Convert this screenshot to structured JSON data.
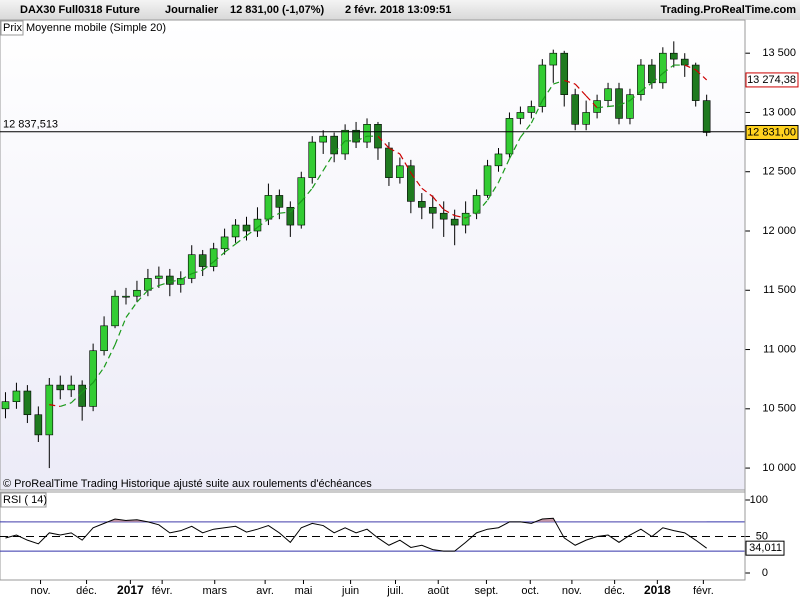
{
  "header": {
    "symbol": "DAX30 Full0318 Future",
    "period": "Journalier",
    "quote": "12 831,00 (-1,07%)",
    "datetime": "2 févr. 2018 13:09:51",
    "site": "Trading.ProRealTime.com"
  },
  "chart_data": [
    {
      "type": "candlestick",
      "legend_box": "Prix",
      "note": "© ProRealTime Trading  Historique ajusté suite aux roulements d'échéances",
      "open": [
        10500,
        10560,
        10650,
        10450,
        10280,
        10700,
        10660,
        10700,
        10520,
        10990,
        11200,
        11450,
        11450,
        11500,
        11600,
        11620,
        11550,
        11600,
        11800,
        11700,
        11850,
        11950,
        12050,
        12000,
        12100,
        12300,
        12200,
        12050,
        12450,
        12750,
        12800,
        12650,
        12850,
        12750,
        12900,
        12700,
        12450,
        12550,
        12250,
        12200,
        12150,
        12100,
        12050,
        12150,
        12300,
        12550,
        12650,
        12950,
        13000,
        13050,
        13400,
        13500,
        13150,
        12900,
        13000,
        13100,
        13200,
        12950,
        13150,
        13400,
        13250,
        13500,
        13450,
        13400,
        13100
      ],
      "high": [
        10640,
        10720,
        10700,
        10520,
        10760,
        10780,
        10780,
        10740,
        11050,
        11280,
        11500,
        11520,
        11580,
        11680,
        11700,
        11680,
        11660,
        11880,
        11840,
        11900,
        12020,
        12100,
        12120,
        12200,
        12400,
        12350,
        12250,
        12500,
        12800,
        12850,
        12830,
        12900,
        12920,
        12950,
        12920,
        12750,
        12620,
        12600,
        12320,
        12300,
        12250,
        12180,
        12250,
        12350,
        12600,
        12700,
        13000,
        13050,
        13100,
        13450,
        13530,
        13520,
        13200,
        13100,
        13150,
        13250,
        13250,
        13200,
        13450,
        13450,
        13550,
        13600,
        13500,
        13420,
        13150
      ],
      "low": [
        10420,
        10500,
        10380,
        10220,
        10000,
        10580,
        10600,
        10400,
        10480,
        10950,
        11180,
        11380,
        11400,
        11450,
        11520,
        11450,
        11480,
        11560,
        11620,
        11660,
        11800,
        11900,
        11920,
        11950,
        12050,
        12100,
        11950,
        12020,
        12400,
        12650,
        12580,
        12600,
        12700,
        12700,
        12600,
        12380,
        12400,
        12150,
        12100,
        12020,
        11950,
        11880,
        11980,
        12100,
        12280,
        12500,
        12620,
        12900,
        12950,
        13000,
        13250,
        13050,
        12850,
        12850,
        12950,
        13050,
        12900,
        12900,
        13100,
        13200,
        13200,
        13380,
        13300,
        13050,
        12800
      ],
      "close": [
        10560,
        10650,
        10450,
        10280,
        10700,
        10660,
        10700,
        10520,
        10990,
        11200,
        11450,
        11450,
        11500,
        11600,
        11620,
        11550,
        11600,
        11800,
        11700,
        11850,
        11950,
        12050,
        12000,
        12100,
        12300,
        12200,
        12050,
        12450,
        12750,
        12800,
        12650,
        12850,
        12750,
        12900,
        12700,
        12450,
        12550,
        12250,
        12200,
        12150,
        12100,
        12050,
        12150,
        12300,
        12550,
        12650,
        12950,
        13000,
        13050,
        13400,
        13500,
        13150,
        12900,
        13000,
        13100,
        13200,
        12950,
        13150,
        13400,
        13250,
        13500,
        13450,
        13400,
        13100,
        12831
      ],
      "up_color": "#33cc33",
      "down_color": "#1f7a1f",
      "ma": {
        "name": "Moyenne mobile (Simple 20)",
        "rising_color": "#1a9a1a",
        "falling_color": "#cc0000",
        "values": [
          null,
          null,
          null,
          null,
          10535,
          10520,
          10550,
          10640,
          10720,
          10850,
          11040,
          11270,
          11400,
          11500,
          11540,
          11570,
          11590,
          11640,
          11670,
          11740,
          11820,
          11890,
          11960,
          12030,
          12100,
          12150,
          12160,
          12250,
          12360,
          12510,
          12660,
          12760,
          12760,
          12800,
          12800,
          12700,
          12650,
          12490,
          12360,
          12290,
          12180,
          12130,
          12110,
          12150,
          12260,
          12410,
          12610,
          12790,
          12910,
          13100,
          13240,
          13270,
          13240,
          13140,
          13040,
          13050,
          13060,
          13100,
          13180,
          13250,
          13330,
          13400,
          13400,
          13360,
          13274.38
        ],
        "last": {
          "value": 13274.38,
          "label": "13 274,38"
        }
      },
      "reference_line": {
        "value": 12837.513,
        "label": "12 837,513"
      },
      "last_price": {
        "value": 12831,
        "label": "12 831,00"
      },
      "xlim": [
        -0.5,
        67.5
      ],
      "ylim": [
        9815,
        13780
      ],
      "yticks": [
        {
          "value": 10000,
          "label": "10 000"
        },
        {
          "value": 10500,
          "label": "10 500"
        },
        {
          "value": 11000,
          "label": "11 000"
        },
        {
          "value": 11500,
          "label": "11 500"
        },
        {
          "value": 12000,
          "label": "12 000"
        },
        {
          "value": 12500,
          "label": "12 500"
        },
        {
          "value": 13000,
          "label": "13 000"
        },
        {
          "value": 13500,
          "label": "13 500"
        }
      ]
    },
    {
      "type": "rsi",
      "title": "RSI ( 14)",
      "color": "#000000",
      "level_color": "#3333aa",
      "fill_color": "#c89aa8",
      "values": [
        48,
        52,
        45,
        40,
        55,
        52,
        55,
        45,
        62,
        68,
        74,
        72,
        73,
        70,
        66,
        55,
        58,
        64,
        55,
        60,
        62,
        64,
        56,
        60,
        65,
        55,
        42,
        62,
        68,
        65,
        55,
        62,
        55,
        60,
        48,
        38,
        45,
        35,
        38,
        32,
        30,
        30,
        42,
        55,
        60,
        62,
        70,
        70,
        68,
        74,
        75,
        48,
        38,
        45,
        50,
        52,
        42,
        52,
        60,
        50,
        62,
        58,
        55,
        45,
        34.011
      ],
      "levels": [
        30,
        70
      ],
      "mid": 50,
      "last": {
        "value": 34.011,
        "label": "34,011"
      },
      "xlim": [
        -0.5,
        67.5
      ],
      "ylim": [
        -9.6,
        109.6
      ],
      "yticks": [
        0,
        50,
        100
      ],
      "xticks": [
        {
          "value": 3.2,
          "label": "nov."
        },
        {
          "value": 7.4,
          "label": "déc."
        },
        {
          "value": 11.4,
          "label": "2017"
        },
        {
          "value": 14.3,
          "label": "févr."
        },
        {
          "value": 19.1,
          "label": "mars"
        },
        {
          "value": 23.7,
          "label": "avr."
        },
        {
          "value": 27.2,
          "label": "mai"
        },
        {
          "value": 31.5,
          "label": "juin"
        },
        {
          "value": 35.6,
          "label": "juil."
        },
        {
          "value": 39.5,
          "label": "août"
        },
        {
          "value": 43.9,
          "label": "sept."
        },
        {
          "value": 47.9,
          "label": "oct."
        },
        {
          "value": 51.7,
          "label": "nov."
        },
        {
          "value": 55.6,
          "label": "déc."
        },
        {
          "value": 59.5,
          "label": "2018"
        },
        {
          "value": 63.7,
          "label": "févr."
        }
      ]
    }
  ]
}
